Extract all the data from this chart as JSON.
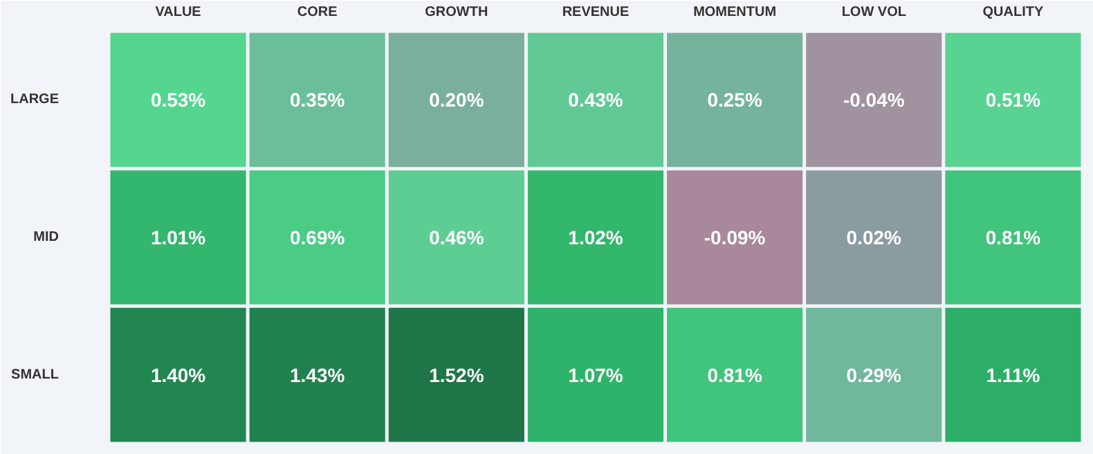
{
  "chart_data": {
    "type": "heatmap",
    "categories": [
      "VALUE",
      "CORE",
      "GROWTH",
      "REVENUE",
      "MOMENTUM",
      "LOW VOL",
      "QUALITY"
    ],
    "y_categories": [
      "LARGE",
      "MID",
      "SMALL"
    ],
    "cells": [
      [
        0.53,
        0.35,
        0.2,
        0.43,
        0.25,
        -0.04,
        0.51
      ],
      [
        1.01,
        0.69,
        0.46,
        1.02,
        -0.09,
        0.02,
        0.81
      ],
      [
        1.4,
        1.43,
        1.52,
        1.07,
        0.81,
        0.29,
        1.11
      ]
    ],
    "cell_labels": [
      [
        "0.53%",
        "0.35%",
        "0.20%",
        "0.43%",
        "0.25%",
        "-0.04%",
        "0.51%"
      ],
      [
        "1.01%",
        "0.69%",
        "0.46%",
        "1.02%",
        "-0.09%",
        "0.02%",
        "0.81%"
      ],
      [
        "1.40%",
        "1.43%",
        "1.52%",
        "1.07%",
        "0.81%",
        "0.29%",
        "1.11%"
      ]
    ]
  }
}
